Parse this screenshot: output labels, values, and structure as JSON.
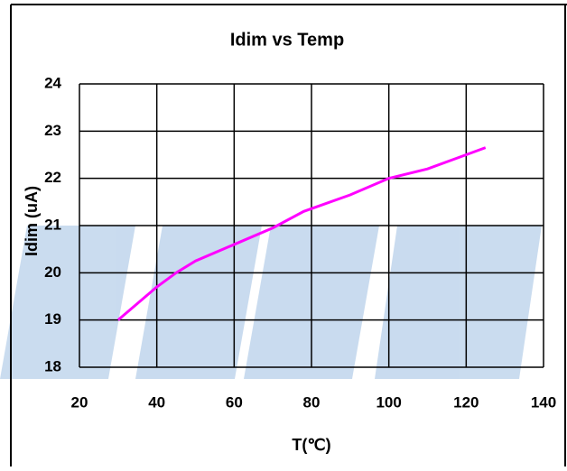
{
  "chart_data": {
    "type": "line",
    "title": "Idim vs Temp",
    "x_label": "T(℃)",
    "y_label": "Idim (uA)",
    "series": [
      {
        "name": "Idim",
        "color": "#ff00ff",
        "x": [
          30,
          40,
          45,
          50,
          60,
          70,
          78,
          90,
          100,
          110,
          120,
          125
        ],
        "values": [
          19.0,
          19.7,
          20.0,
          20.25,
          20.6,
          20.95,
          21.3,
          21.65,
          22.0,
          22.2,
          22.5,
          22.65
        ]
      }
    ],
    "xlim": [
      20,
      140
    ],
    "xticks": [
      20,
      40,
      60,
      80,
      100,
      120,
      140
    ],
    "ylim": [
      18,
      24
    ],
    "yticks": [
      18,
      19,
      20,
      21,
      22,
      23,
      24
    ],
    "grid": true
  }
}
